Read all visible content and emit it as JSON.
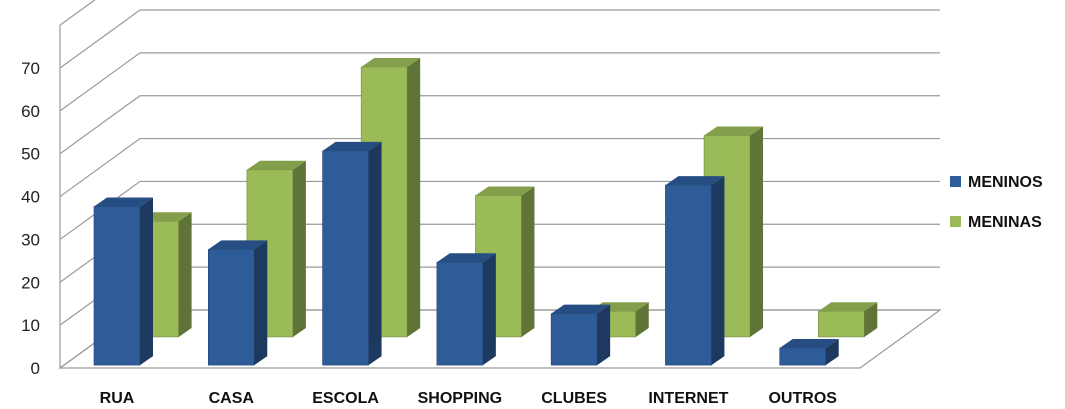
{
  "chart_data": {
    "type": "bar",
    "title": "",
    "xlabel": "",
    "ylabel": "",
    "ylim": [
      0,
      70
    ],
    "yticks": [
      0,
      10,
      20,
      30,
      40,
      50,
      60,
      70
    ],
    "grid": true,
    "legend_position": "right",
    "style": "3d-clustered-column",
    "categories": [
      "RUA",
      "CASA",
      "ESCOLA",
      "SHOPPING",
      "CLUBES",
      "INTERNET",
      "OUTROS"
    ],
    "series": [
      {
        "name": "MENINOS",
        "values": [
          37,
          27,
          50,
          24,
          12,
          42,
          4
        ],
        "color": "#2E5C99"
      },
      {
        "name": "MENINAS",
        "values": [
          27,
          39,
          63,
          33,
          6,
          47,
          6
        ],
        "color": "#9BBB59"
      }
    ]
  }
}
